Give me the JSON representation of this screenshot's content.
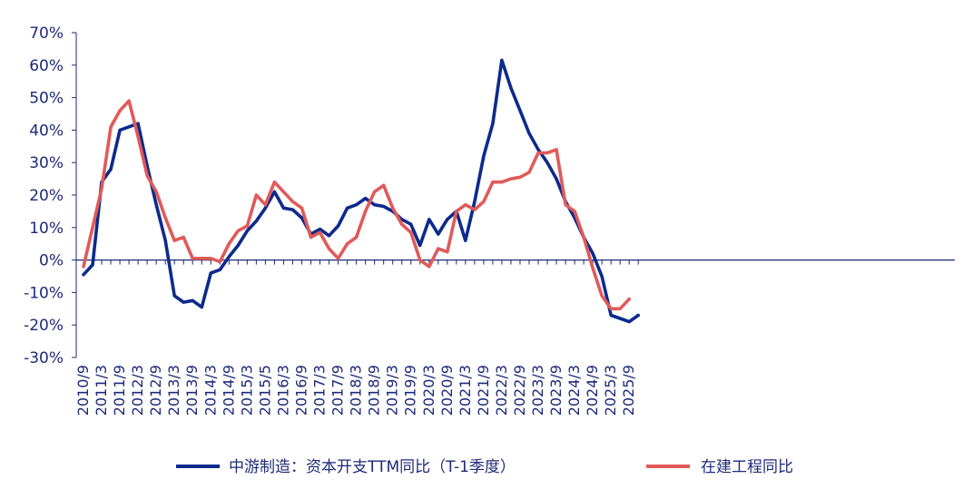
{
  "chart_data": {
    "type": "line",
    "title": "",
    "xlabel": "",
    "ylabel": "",
    "ylim": [
      -30,
      70
    ],
    "y_ticks": [
      70,
      60,
      50,
      40,
      30,
      20,
      10,
      0,
      -10,
      -20,
      -30
    ],
    "y_tick_labels": [
      "70%",
      "60%",
      "50%",
      "40%",
      "30%",
      "20%",
      "10%",
      "0%",
      "-10%",
      "-20%",
      "-30%"
    ],
    "x_tick_labels": [
      "2010/9",
      "2011/3",
      "2011/9",
      "2012/3",
      "2012/9",
      "2013/3",
      "2013/9",
      "2014/3",
      "2014/9",
      "2015/3",
      "2015/5",
      "2016/3",
      "2016/9",
      "2017/3",
      "2017/9",
      "2018/3",
      "2018/9",
      "2019/3",
      "2019/9",
      "2020/3",
      "2020/9",
      "2021/3",
      "2021/9",
      "2022/3",
      "2022/9",
      "2023/3",
      "2023/9",
      "2024/3",
      "2024/9",
      "2025/3",
      "2025/9"
    ],
    "grid": false,
    "legend_position": "bottom",
    "series": [
      {
        "name": "中游制造：资本开支TTM同比（T-1季度）",
        "color": "#0d2a8c",
        "x": [
          "2010/9",
          "2010/12",
          "2011/3",
          "2011/6",
          "2011/9",
          "2011/12",
          "2012/3",
          "2012/6",
          "2012/9",
          "2012/12",
          "2013/3",
          "2013/6",
          "2013/9",
          "2013/12",
          "2014/3",
          "2014/6",
          "2014/9",
          "2014/12",
          "2015/3",
          "2015/6",
          "2015/9",
          "2015/12",
          "2016/3",
          "2016/6",
          "2016/9",
          "2016/12",
          "2017/3",
          "2017/6",
          "2017/9",
          "2017/12",
          "2018/3",
          "2018/6",
          "2018/9",
          "2018/12",
          "2019/3",
          "2019/6",
          "2019/9",
          "2019/12",
          "2020/3",
          "2020/6",
          "2020/9",
          "2020/12",
          "2021/3",
          "2021/6",
          "2021/9",
          "2021/12",
          "2022/3",
          "2022/6",
          "2022/9",
          "2022/12",
          "2023/3",
          "2023/6",
          "2023/9",
          "2023/12",
          "2024/3",
          "2024/6",
          "2024/9",
          "2024/12",
          "2025/3",
          "2025/6",
          "2025/9",
          "2025/12"
        ],
        "values": [
          -4.5,
          -1.5,
          24,
          28,
          40,
          41,
          42,
          29,
          17,
          6,
          -11,
          -13,
          -12.5,
          -14.5,
          -4,
          -3,
          1,
          4.5,
          9,
          12,
          16,
          21,
          16,
          15.5,
          13,
          8,
          9.5,
          7.5,
          10.5,
          16,
          17,
          19,
          17,
          16.5,
          15,
          12.5,
          11,
          4.5,
          12.5,
          8,
          12.5,
          15,
          6,
          18,
          32,
          42,
          61.5,
          53,
          46,
          39,
          34,
          30,
          25,
          18,
          13,
          7,
          2,
          -5,
          -17,
          -18,
          -19,
          -17
        ]
      },
      {
        "name": "在建工程同比",
        "color": "#e05a5a",
        "x": [
          "2010/9",
          "2010/12",
          "2011/3",
          "2011/6",
          "2011/9",
          "2011/12",
          "2012/3",
          "2012/6",
          "2012/9",
          "2012/12",
          "2013/3",
          "2013/6",
          "2013/9",
          "2013/12",
          "2014/3",
          "2014/6",
          "2014/9",
          "2014/12",
          "2015/3",
          "2015/6",
          "2015/9",
          "2015/12",
          "2016/3",
          "2016/6",
          "2016/9",
          "2016/12",
          "2017/3",
          "2017/6",
          "2017/9",
          "2017/12",
          "2018/3",
          "2018/6",
          "2018/9",
          "2018/12",
          "2019/3",
          "2019/6",
          "2019/9",
          "2019/12",
          "2020/3",
          "2020/6",
          "2020/9",
          "2020/12",
          "2021/3",
          "2021/6",
          "2021/9",
          "2021/12",
          "2022/3",
          "2022/6",
          "2022/9",
          "2022/12",
          "2023/3",
          "2023/6",
          "2023/9",
          "2023/12",
          "2024/3",
          "2024/6",
          "2024/9",
          "2024/12",
          "2025/3",
          "2025/6",
          "2025/9"
        ],
        "values": [
          -2,
          10,
          22,
          41,
          46,
          49,
          38,
          26,
          21,
          13,
          6,
          7,
          0.5,
          0.5,
          0.5,
          -0.5,
          5,
          9,
          10.5,
          20,
          17,
          24,
          21,
          18,
          16,
          7,
          8.5,
          3.5,
          0.5,
          5,
          7,
          15,
          21,
          23,
          16,
          11,
          8.5,
          0,
          -2,
          3.5,
          2.5,
          15,
          17,
          15.5,
          18,
          24,
          24,
          25,
          25.5,
          27,
          33,
          33,
          34,
          17,
          15,
          7,
          -2.5,
          -11,
          -15,
          -15,
          -12
        ]
      }
    ]
  }
}
